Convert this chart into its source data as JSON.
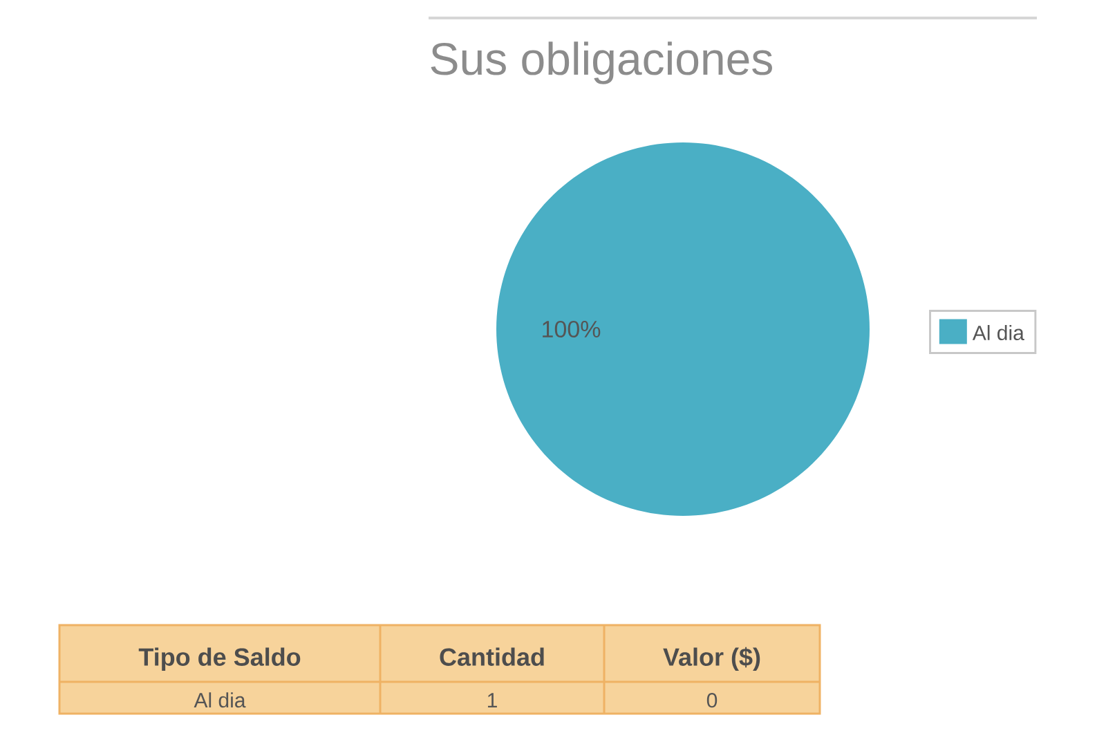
{
  "chart_data": [
    {
      "type": "pie",
      "title": "Sus obligaciones",
      "categories": [
        "Al dia"
      ],
      "values": [
        100
      ],
      "colors": [
        "#4aafc5"
      ],
      "value_labels": [
        "100%"
      ],
      "legend": "right"
    },
    {
      "type": "other",
      "xlabel": "Tipo de Saldo",
      "categories": [
        "Al dia"
      ],
      "series": [
        {
          "name": "Cantidad",
          "values": [
            1
          ]
        },
        {
          "name": "Valor ($)",
          "values": [
            0
          ]
        }
      ],
      "data_labels": true
    }
  ]
}
